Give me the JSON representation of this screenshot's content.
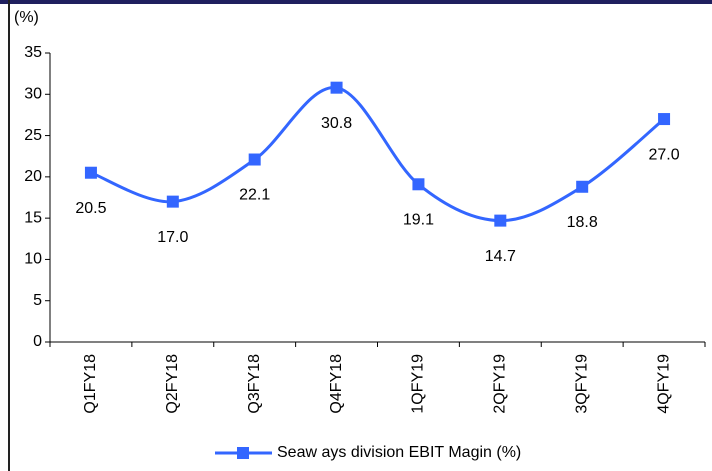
{
  "chart_data": {
    "type": "line",
    "y_unit_label": "(%)",
    "categories": [
      "Q1FY18",
      "Q2FY18",
      "Q3FY18",
      "Q4FY18",
      "1QFY19",
      "2QFY19",
      "3QFY19",
      "4QFY19"
    ],
    "series": [
      {
        "name": "Seaw ays division EBIT Magin (%)",
        "color": "#3366ff",
        "values": [
          20.5,
          17.0,
          22.1,
          30.8,
          19.1,
          14.7,
          18.8,
          27.0
        ],
        "value_labels": [
          "20.5",
          "17.0",
          "22.1",
          "30.8",
          "19.1",
          "14.7",
          "18.8",
          "27.0"
        ]
      }
    ],
    "ylim": [
      0,
      35
    ],
    "yticks": [
      0,
      5,
      10,
      15,
      20,
      25,
      30,
      35
    ],
    "grid": false,
    "legend": "bottom"
  }
}
